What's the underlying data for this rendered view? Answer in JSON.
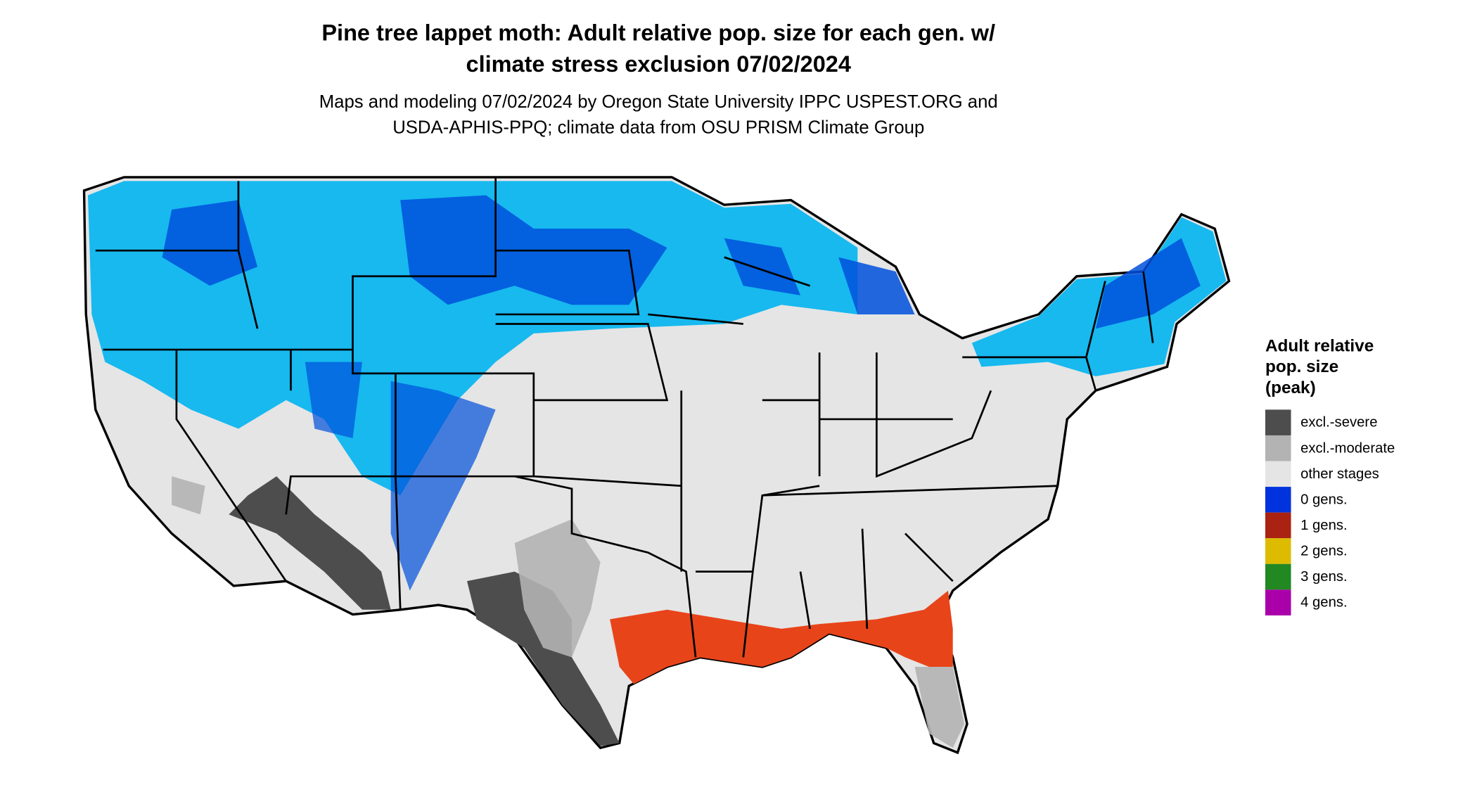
{
  "title": [
    "Pine tree lappet moth: Adult relative pop. size for each gen. w/",
    "climate stress exclusion 07/02/2024"
  ],
  "subtitle": [
    "Maps and modeling 07/02/2024 by Oregon State University IPPC USPEST.ORG and",
    "USDA-APHIS-PPQ; climate data from OSU PRISM Climate Group"
  ],
  "legend": {
    "title": [
      "Adult relative",
      "pop. size",
      "(peak)"
    ],
    "items": [
      {
        "label": "excl.-severe",
        "color": "#4d4d4d"
      },
      {
        "label": "excl.-moderate",
        "color": "#b3b3b3"
      },
      {
        "label": "other stages",
        "color": "#e5e5e5"
      },
      {
        "label": "0 gens.",
        "color": "#0033dd"
      },
      {
        "label": "1 gens.",
        "color": "#aa2211"
      },
      {
        "label": "2 gens.",
        "color": "#ddbb00"
      },
      {
        "label": "3 gens.",
        "color": "#228822"
      },
      {
        "label": "4 gens.",
        "color": "#aa00aa"
      }
    ]
  }
}
